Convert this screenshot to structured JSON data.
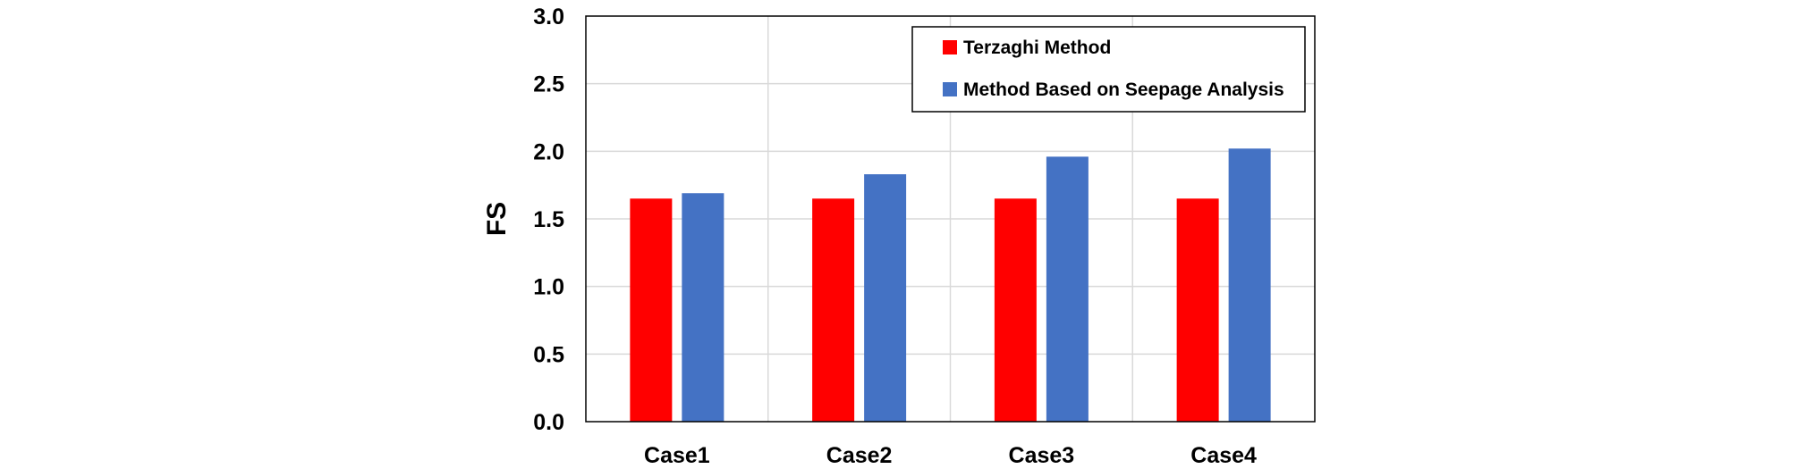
{
  "chart_data": {
    "type": "bar",
    "categories": [
      "Case1",
      "Case2",
      "Case3",
      "Case4"
    ],
    "series": [
      {
        "name": "Terzaghi Method",
        "values": [
          1.65,
          1.65,
          1.65,
          1.65
        ],
        "color": "#ff0000"
      },
      {
        "name": "Method Based on Seepage Analysis",
        "values": [
          1.69,
          1.83,
          1.96,
          2.02
        ],
        "color": "#4472c4"
      }
    ],
    "title": "",
    "xlabel": "",
    "ylabel": "FS",
    "ylim": [
      0,
      3
    ],
    "yticks": [
      "0.0",
      "0.5",
      "1.0",
      "1.5",
      "2.0",
      "2.5",
      "3.0"
    ],
    "grid": true,
    "legend_position": "top-right"
  }
}
